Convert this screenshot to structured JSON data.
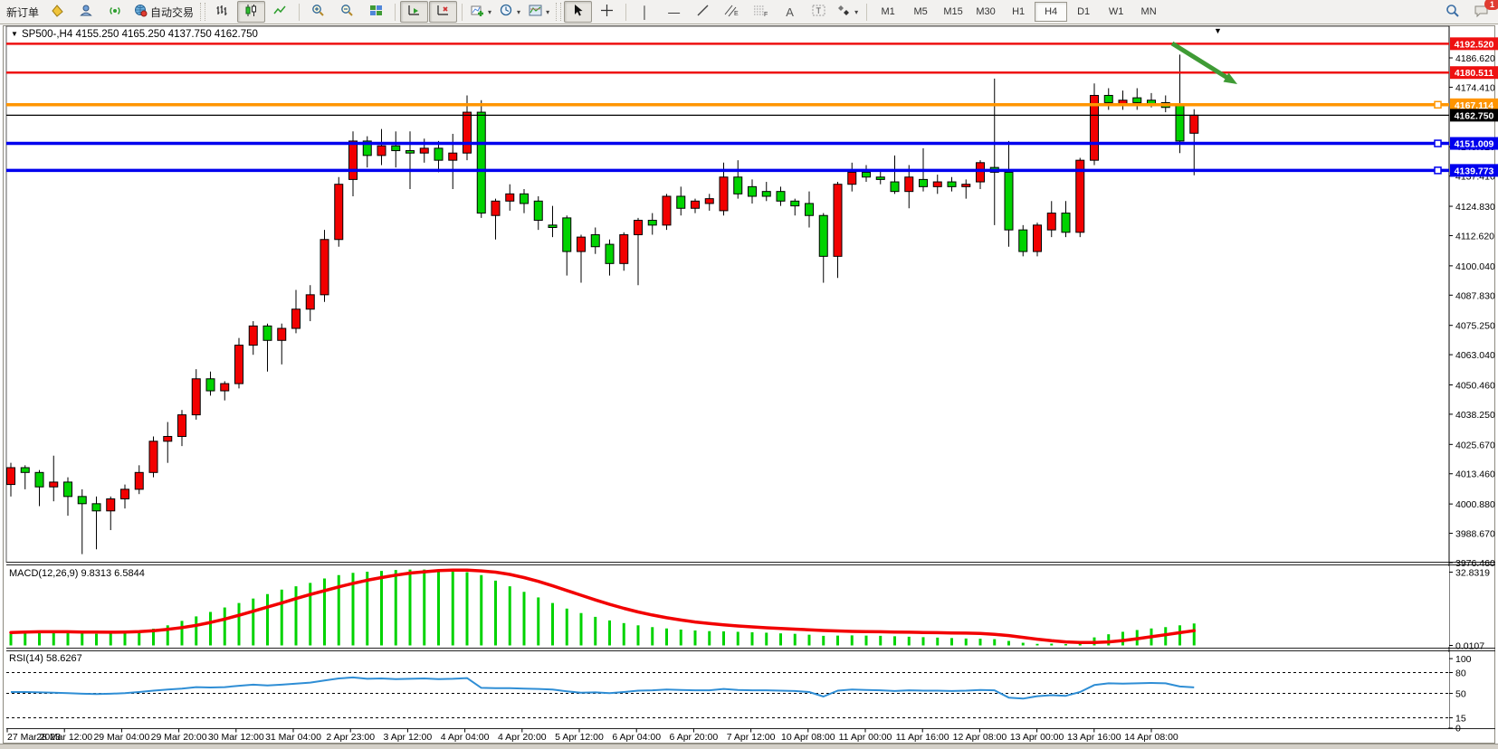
{
  "toolbar": {
    "new_order_label": "新订单",
    "auto_trading_label": "自动交易",
    "notification_count": "1",
    "timeframes": [
      "M1",
      "M5",
      "M15",
      "M30",
      "H1",
      "H4",
      "D1",
      "W1",
      "MN"
    ],
    "active_timeframe": "H4",
    "icons": [
      "kite-icon",
      "profile-icon",
      "signal-icon",
      "globe-icon",
      "chart-bars-icon",
      "chart-candles-icon",
      "chart-line-icon",
      "zoom-in-icon",
      "zoom-out-icon",
      "tile-windows-icon",
      "auto-scroll-icon",
      "chart-shift-icon",
      "indicators-add-icon",
      "periods-icon",
      "template-icon",
      "cursor-icon",
      "crosshair-icon",
      "vertical-line-icon",
      "horizontal-line-icon",
      "trendline-icon",
      "channel-icon",
      "fibonacci-icon",
      "text-icon",
      "label-icon",
      "shapes-icon",
      "search-icon",
      "chat-icon"
    ]
  },
  "chart": {
    "title_marker": "▼",
    "title": "SP500-,H4",
    "ohlc_text": "4155.250 4165.250 4137.750 4162.750",
    "shift_marker": "▼",
    "y_ticks": [
      "4186.620",
      "4174.410",
      "4149.620",
      "4137.410",
      "4124.830",
      "4112.620",
      "4100.040",
      "4087.830",
      "4075.250",
      "4063.040",
      "4050.460",
      "4038.250",
      "4025.670",
      "4013.460",
      "4000.880",
      "3988.670",
      "3976.460"
    ],
    "levels": [
      {
        "label": "4192.520",
        "value": 4192.52,
        "color": "#ee1111",
        "thickness": 2.5,
        "selected": false
      },
      {
        "label": "4180.511",
        "value": 4180.511,
        "color": "#ee1111",
        "thickness": 2.5,
        "selected": false
      },
      {
        "label": "4167.114",
        "value": 4167.114,
        "color": "#ff9500",
        "thickness": 3.5,
        "selected": true
      },
      {
        "label": "4162.750",
        "value": 4162.75,
        "color": "#000000",
        "thickness": 1.2,
        "selected": false
      },
      {
        "label": "4151.009",
        "value": 4151.009,
        "color": "#0000ee",
        "thickness": 3.5,
        "selected": true
      },
      {
        "label": "4139.773",
        "value": 4139.773,
        "color": "#0000ee",
        "thickness": 3.5,
        "selected": true
      }
    ],
    "x_labels": [
      "27 Mar 2023",
      "28 Mar 12:00",
      "29 Mar 04:00",
      "29 Mar 20:00",
      "30 Mar 12:00",
      "31 Mar 04:00",
      "2 Apr 23:00",
      "3 Apr 12:00",
      "4 Apr 04:00",
      "4 Apr 20:00",
      "5 Apr 12:00",
      "6 Apr 04:00",
      "6 Apr 20:00",
      "7 Apr 12:00",
      "10 Apr 08:00",
      "11 Apr 00:00",
      "11 Apr 16:00",
      "12 Apr 08:00",
      "13 Apr 00:00",
      "13 Apr 16:00",
      "14 Apr 08:00"
    ]
  },
  "chart_data": {
    "type": "candlestick",
    "symbol": "SP500-",
    "timeframe": "H4",
    "bull_color": "#f20000",
    "bear_color": "#00d300",
    "wick_color": "#000000",
    "ylim": [
      3976.46,
      4199.8
    ],
    "candles": [
      [
        4009,
        4018,
        4004,
        4016
      ],
      [
        4016,
        4017,
        4007,
        4014
      ],
      [
        4014,
        4015,
        4000,
        4008
      ],
      [
        4008,
        4021,
        4002,
        4010
      ],
      [
        4010,
        4012,
        3996,
        4004
      ],
      [
        4004,
        4007,
        3980,
        4001
      ],
      [
        4001,
        4004,
        3982,
        3998
      ],
      [
        3998,
        4004,
        3990,
        4003
      ],
      [
        4003,
        4009,
        3999,
        4007
      ],
      [
        4007,
        4017,
        4005,
        4014
      ],
      [
        4014,
        4029,
        4012,
        4027
      ],
      [
        4027,
        4035,
        4018,
        4029
      ],
      [
        4029,
        4040,
        4025,
        4038
      ],
      [
        4038,
        4057,
        4036,
        4053
      ],
      [
        4053,
        4056,
        4046,
        4048
      ],
      [
        4048,
        4052,
        4044,
        4051
      ],
      [
        4051,
        4070,
        4049,
        4067
      ],
      [
        4067,
        4077,
        4063,
        4075
      ],
      [
        4075,
        4076,
        4056,
        4069
      ],
      [
        4069,
        4076,
        4059,
        4074
      ],
      [
        4074,
        4090,
        4072,
        4082
      ],
      [
        4082,
        4092,
        4077,
        4088
      ],
      [
        4088,
        4115,
        4085,
        4111
      ],
      [
        4111,
        4137,
        4108,
        4134
      ],
      [
        4136,
        4156,
        4129,
        4152
      ],
      [
        4152,
        4154,
        4141,
        4146
      ],
      [
        4146,
        4157,
        4142,
        4150
      ],
      [
        4150,
        4156,
        4141,
        4148
      ],
      [
        4148,
        4156,
        4132,
        4147
      ],
      [
        4147,
        4153,
        4143,
        4149
      ],
      [
        4149,
        4152,
        4139,
        4144
      ],
      [
        4144,
        4155,
        4132,
        4147
      ],
      [
        4147,
        4171,
        4144,
        4164
      ],
      [
        4164,
        4169,
        4120,
        4122
      ],
      [
        4121,
        4128,
        4111,
        4127
      ],
      [
        4127,
        4134,
        4123,
        4130
      ],
      [
        4130,
        4132,
        4122,
        4126
      ],
      [
        4127,
        4129,
        4115,
        4119
      ],
      [
        4117,
        4125,
        4112,
        4116
      ],
      [
        4120,
        4121,
        4096,
        4106
      ],
      [
        4106,
        4113,
        4093,
        4112
      ],
      [
        4113,
        4116,
        4105,
        4108
      ],
      [
        4109,
        4111,
        4096,
        4101
      ],
      [
        4101,
        4114,
        4098,
        4113
      ],
      [
        4113,
        4120,
        4092,
        4119
      ],
      [
        4119,
        4122,
        4113,
        4117
      ],
      [
        4117,
        4130,
        4115,
        4129
      ],
      [
        4129,
        4133,
        4121,
        4124
      ],
      [
        4124,
        4128,
        4122,
        4127
      ],
      [
        4126,
        4130,
        4123,
        4128
      ],
      [
        4123,
        4143,
        4121,
        4137
      ],
      [
        4137,
        4144,
        4128,
        4130
      ],
      [
        4133,
        4136,
        4126,
        4129
      ],
      [
        4131,
        4135,
        4127,
        4129
      ],
      [
        4131,
        4133,
        4125,
        4127
      ],
      [
        4127,
        4128,
        4121,
        4125
      ],
      [
        4126,
        4131,
        4116,
        4121
      ],
      [
        4121,
        4122,
        4093,
        4104
      ],
      [
        4104,
        4135,
        4095,
        4134
      ],
      [
        4134,
        4143,
        4131,
        4139
      ],
      [
        4139,
        4142,
        4135,
        4137
      ],
      [
        4137,
        4140,
        4134,
        4136
      ],
      [
        4135,
        4146,
        4130,
        4131
      ],
      [
        4131,
        4142,
        4124,
        4137
      ],
      [
        4136,
        4149,
        4131,
        4133
      ],
      [
        4133,
        4138,
        4130,
        4135
      ],
      [
        4135,
        4137,
        4131,
        4133
      ],
      [
        4133,
        4136,
        4128,
        4134
      ],
      [
        4135,
        4144,
        4132,
        4143
      ],
      [
        4141,
        4178,
        4117,
        4139
      ],
      [
        4139,
        4152,
        4108,
        4115
      ],
      [
        4115,
        4117,
        4104,
        4106
      ],
      [
        4106,
        4118,
        4104,
        4117
      ],
      [
        4115,
        4127,
        4112,
        4122
      ],
      [
        4122,
        4127,
        4112,
        4114
      ],
      [
        4114,
        4145,
        4112,
        4144
      ],
      [
        4144,
        4176,
        4142,
        4171
      ],
      [
        4171,
        4174,
        4165,
        4168
      ],
      [
        4167,
        4173,
        4165,
        4169
      ],
      [
        4170,
        4174,
        4165,
        4168
      ],
      [
        4169,
        4172,
        4166,
        4167
      ],
      [
        4168,
        4171,
        4164,
        4166
      ],
      [
        4167,
        4188,
        4147,
        4152
      ],
      [
        4155.25,
        4165.25,
        4137.75,
        4162.75
      ]
    ],
    "macd": {
      "label": "MACD(12,26,9)",
      "main_value": "9.8313",
      "signal_value": "6.5844",
      "axis_max": "32.8319",
      "axis_min": "0.0107",
      "histogram_color": "#00d300",
      "signal_color": "#f20000",
      "histogram": [
        5.2,
        5.4,
        5.6,
        5.8,
        5.6,
        5.4,
        5.2,
        5.4,
        5.8,
        6.5,
        7.5,
        9,
        11,
        13,
        15,
        17,
        19,
        21,
        23,
        25,
        26.5,
        28,
        30,
        31.5,
        32.5,
        33,
        33.4,
        33.8,
        34,
        34,
        33.8,
        33.4,
        32.8,
        31.5,
        29,
        26.5,
        24,
        21.5,
        19,
        16.5,
        14.5,
        12.8,
        11.2,
        10,
        9,
        8.2,
        7.6,
        7.1,
        6.7,
        6.4,
        6.3,
        6.1,
        5.9,
        5.7,
        5.4,
        5.2,
        4.8,
        4.3,
        4.4,
        4.5,
        4.4,
        4.3,
        4.1,
        3.9,
        3.7,
        3.5,
        3.3,
        3.1,
        3,
        2.8,
        2,
        1.2,
        0.7,
        0.8,
        0.6,
        1.8,
        3.6,
        5,
        6.1,
        6.9,
        7.6,
        8.2,
        9,
        9.8313
      ],
      "signal": [
        5.8,
        6,
        6.1,
        6.1,
        6.1,
        6,
        6,
        5.9,
        6,
        6.2,
        6.6,
        7.2,
        8,
        9,
        10.3,
        11.8,
        13.5,
        15.3,
        17.2,
        19,
        21,
        22.8,
        24.5,
        26.2,
        27.8,
        29.2,
        30.4,
        31.5,
        32.4,
        33,
        33.5,
        33.7,
        33.7,
        33.4,
        32.8,
        31.8,
        30.4,
        28.7,
        26.7,
        24.6,
        22.5,
        20.4,
        18.4,
        16.6,
        15,
        13.6,
        12.4,
        11.4,
        10.5,
        9.8,
        9.2,
        8.7,
        8.3,
        7.9,
        7.6,
        7.3,
        7,
        6.7,
        6.5,
        6.3,
        6.2,
        6.1,
        6,
        5.9,
        5.8,
        5.7,
        5.6,
        5.5,
        5.4,
        5,
        4.4,
        3.6,
        2.8,
        2.1,
        1.6,
        1.3,
        1.3,
        1.6,
        2.2,
        3,
        3.9,
        4.8,
        5.7,
        6.5844
      ]
    },
    "rsi": {
      "label": "RSI(14)",
      "value": "58.6267",
      "line_color": "#2f8ed5",
      "level_lines": [
        80,
        50,
        15
      ],
      "axis_labels": [
        "100",
        "80",
        "50",
        "15",
        "0"
      ],
      "axis_values": [
        100,
        80,
        50,
        15,
        0
      ],
      "values": [
        52,
        52,
        51.5,
        51,
        50.5,
        49.5,
        49,
        49.5,
        50.5,
        52,
        54,
        55.5,
        57,
        59,
        58.5,
        59,
        61,
        62.5,
        61.5,
        62.5,
        64,
        65.5,
        68.5,
        71.5,
        73,
        71,
        71.5,
        70.5,
        71,
        71.5,
        70.5,
        71,
        72,
        58,
        57.5,
        57.5,
        57,
        56.5,
        55.5,
        53,
        51,
        51.5,
        50.5,
        52,
        54,
        54.5,
        55.5,
        55,
        54.5,
        54.5,
        56.5,
        55,
        54.5,
        54.5,
        54,
        53.5,
        52,
        45.5,
        54,
        55.5,
        55,
        54.5,
        53.5,
        54.5,
        54,
        54,
        53.5,
        54,
        55,
        54.5,
        44,
        42.5,
        46,
        47.5,
        46.5,
        52,
        62,
        64.5,
        64,
        64.5,
        65,
        64.5,
        60,
        58.6267
      ]
    },
    "annotation": {
      "type": "arrow",
      "direction": "down-right",
      "color": "#3f9b35",
      "from_price": 4192.5,
      "to_price": 4175.5
    }
  }
}
